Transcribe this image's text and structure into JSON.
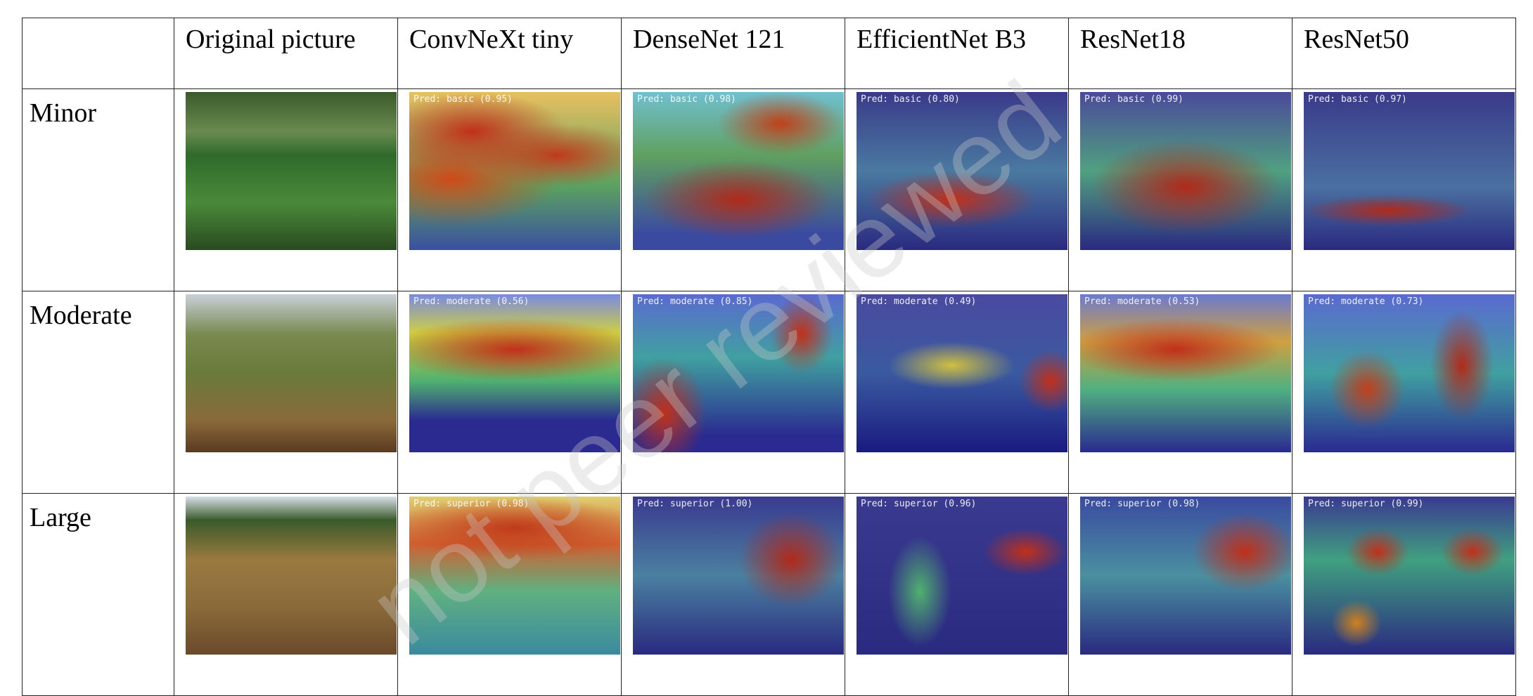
{
  "header": [
    "",
    "Original picture",
    "ConvNeXt tiny",
    "DenseNet 121",
    "EfficientNet B3",
    "ResNet18",
    "ResNet50"
  ],
  "rows": [
    {
      "label": "Minor",
      "preds": [
        "Pred: basic (0.95)",
        "Pred: basic (0.98)",
        "Pred: basic (0.80)",
        "Pred: basic (0.99)",
        "Pred: basic (0.97)"
      ]
    },
    {
      "label": "Moderate",
      "preds": [
        "Pred: moderate (0.56)",
        "Pred: moderate (0.85)",
        "Pred: moderate (0.49)",
        "Pred: moderate (0.53)",
        "Pred: moderate (0.73)"
      ]
    },
    {
      "label": "Large",
      "preds": [
        "Pred: superior (0.98)",
        "Pred: superior (1.00)",
        "Pred: superior (0.96)",
        "Pred: superior (0.98)",
        "Pred: superior (0.99)"
      ]
    }
  ],
  "watermark": "not peer reviewed"
}
